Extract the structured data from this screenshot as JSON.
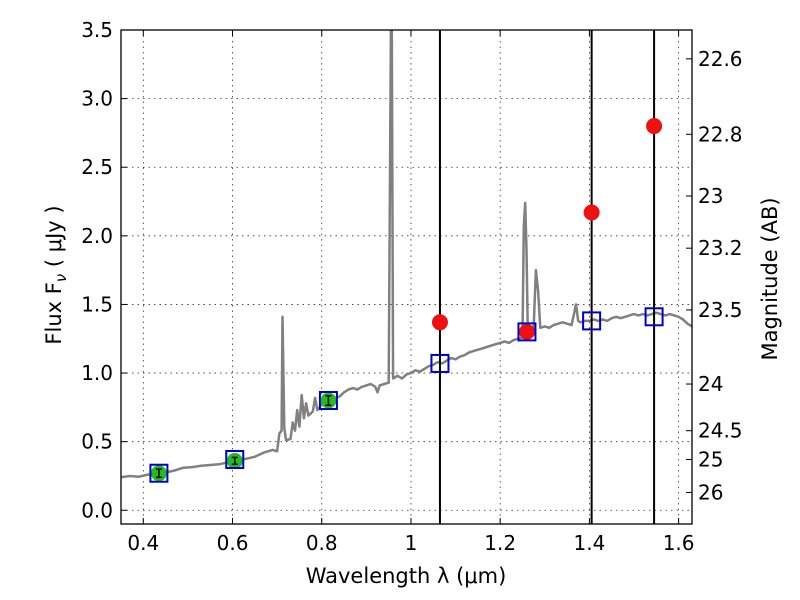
{
  "chart_data": {
    "type": "scatter",
    "xlabel": "Wavelength  λ (μm)",
    "ylabel": "Flux  F",
    "ylabel_sub": "ν",
    "ylabel_units": "  ( μJy )",
    "y2label": "Magnitude (AB)",
    "xlim": [
      0.35,
      1.63
    ],
    "ylim": [
      -0.1,
      3.5
    ],
    "grid": true,
    "x_ticks": [
      {
        "value": 0.4,
        "label": "0.4"
      },
      {
        "value": 0.6,
        "label": "0.6"
      },
      {
        "value": 0.8,
        "label": "0.8"
      },
      {
        "value": 1.0,
        "label": "1"
      },
      {
        "value": 1.2,
        "label": "1.2"
      },
      {
        "value": 1.4,
        "label": "1.4"
      },
      {
        "value": 1.6,
        "label": "1.6"
      }
    ],
    "y_ticks": [
      {
        "value": 0.0,
        "label": "0.0"
      },
      {
        "value": 0.5,
        "label": "0.5"
      },
      {
        "value": 1.0,
        "label": "1.0"
      },
      {
        "value": 1.5,
        "label": "1.5"
      },
      {
        "value": 2.0,
        "label": "2.0"
      },
      {
        "value": 2.5,
        "label": "2.5"
      },
      {
        "value": 3.0,
        "label": "3.0"
      },
      {
        "value": 3.5,
        "label": "3.5"
      }
    ],
    "y2_ticks": [
      {
        "flux": 3.29,
        "label": "22.6"
      },
      {
        "flux": 2.74,
        "label": "22.8"
      },
      {
        "flux": 2.29,
        "label": "23"
      },
      {
        "flux": 1.91,
        "label": "23.2"
      },
      {
        "flux": 1.46,
        "label": "23.5"
      },
      {
        "flux": 0.92,
        "label": "24"
      },
      {
        "flux": 0.58,
        "label": "24.5"
      },
      {
        "flux": 0.37,
        "label": "25"
      },
      {
        "flux": 0.13,
        "label": "26"
      }
    ],
    "vertical_lines": [
      1.065,
      1.405,
      1.545
    ],
    "series": [
      {
        "role": "model spectrum",
        "marker": "line",
        "color": "#808080",
        "points": [
          [
            0.35,
            0.24
          ],
          [
            0.37,
            0.25
          ],
          [
            0.39,
            0.245
          ],
          [
            0.41,
            0.26
          ],
          [
            0.43,
            0.265
          ],
          [
            0.45,
            0.275
          ],
          [
            0.47,
            0.29
          ],
          [
            0.49,
            0.31
          ],
          [
            0.51,
            0.315
          ],
          [
            0.53,
            0.325
          ],
          [
            0.55,
            0.33
          ],
          [
            0.57,
            0.335
          ],
          [
            0.59,
            0.35
          ],
          [
            0.61,
            0.365
          ],
          [
            0.63,
            0.375
          ],
          [
            0.65,
            0.39
          ],
          [
            0.67,
            0.42
          ],
          [
            0.69,
            0.44
          ],
          [
            0.7,
            0.43
          ],
          [
            0.705,
            0.56
          ],
          [
            0.71,
            0.58
          ],
          [
            0.712,
            1.41
          ],
          [
            0.716,
            0.6
          ],
          [
            0.72,
            0.51
          ],
          [
            0.73,
            0.52
          ],
          [
            0.735,
            0.64
          ],
          [
            0.74,
            0.58
          ],
          [
            0.745,
            0.73
          ],
          [
            0.75,
            0.61
          ],
          [
            0.755,
            0.84
          ],
          [
            0.76,
            0.67
          ],
          [
            0.765,
            0.78
          ],
          [
            0.77,
            0.69
          ],
          [
            0.78,
            0.72
          ],
          [
            0.785,
            0.82
          ],
          [
            0.79,
            0.73
          ],
          [
            0.8,
            0.77
          ],
          [
            0.81,
            0.79
          ],
          [
            0.82,
            0.8
          ],
          [
            0.83,
            0.82
          ],
          [
            0.84,
            0.83
          ],
          [
            0.85,
            0.86
          ],
          [
            0.86,
            0.88
          ],
          [
            0.87,
            0.89
          ],
          [
            0.88,
            0.88
          ],
          [
            0.89,
            0.9
          ],
          [
            0.9,
            0.91
          ],
          [
            0.91,
            0.92
          ],
          [
            0.92,
            0.9
          ],
          [
            0.925,
            0.86
          ],
          [
            0.93,
            0.91
          ],
          [
            0.94,
            0.92
          ],
          [
            0.95,
            0.93
          ],
          [
            0.955,
            3.5
          ],
          [
            0.957,
            3.5
          ],
          [
            0.96,
            0.96
          ],
          [
            0.97,
            0.98
          ],
          [
            0.98,
            0.96
          ],
          [
            0.99,
            0.99
          ],
          [
            1.0,
            1.0
          ],
          [
            1.01,
            1.02
          ],
          [
            1.02,
            1.01
          ],
          [
            1.03,
            1.03
          ],
          [
            1.04,
            1.05
          ],
          [
            1.05,
            1.06
          ],
          [
            1.06,
            1.08
          ],
          [
            1.07,
            1.07
          ],
          [
            1.08,
            1.09
          ],
          [
            1.09,
            1.11
          ],
          [
            1.1,
            1.1
          ],
          [
            1.11,
            1.12
          ],
          [
            1.12,
            1.13
          ],
          [
            1.13,
            1.15
          ],
          [
            1.14,
            1.16
          ],
          [
            1.15,
            1.17
          ],
          [
            1.16,
            1.18
          ],
          [
            1.17,
            1.19
          ],
          [
            1.18,
            1.2
          ],
          [
            1.19,
            1.21
          ],
          [
            1.2,
            1.22
          ],
          [
            1.21,
            1.23
          ],
          [
            1.22,
            1.22
          ],
          [
            1.23,
            1.24
          ],
          [
            1.24,
            1.25
          ],
          [
            1.25,
            1.26
          ],
          [
            1.253,
            2.07
          ],
          [
            1.256,
            2.24
          ],
          [
            1.259,
            1.9
          ],
          [
            1.262,
            1.3
          ],
          [
            1.27,
            1.28
          ],
          [
            1.275,
            1.32
          ],
          [
            1.28,
            1.75
          ],
          [
            1.285,
            1.6
          ],
          [
            1.29,
            1.33
          ],
          [
            1.3,
            1.34
          ],
          [
            1.31,
            1.33
          ],
          [
            1.32,
            1.35
          ],
          [
            1.33,
            1.36
          ],
          [
            1.34,
            1.37
          ],
          [
            1.35,
            1.36
          ],
          [
            1.36,
            1.35
          ],
          [
            1.37,
            1.5
          ],
          [
            1.375,
            1.38
          ],
          [
            1.38,
            1.37
          ],
          [
            1.39,
            1.38
          ],
          [
            1.4,
            1.38
          ],
          [
            1.41,
            1.39
          ],
          [
            1.42,
            1.38
          ],
          [
            1.43,
            1.39
          ],
          [
            1.44,
            1.38
          ],
          [
            1.45,
            1.4
          ],
          [
            1.46,
            1.41
          ],
          [
            1.47,
            1.4
          ],
          [
            1.48,
            1.41
          ],
          [
            1.49,
            1.42
          ],
          [
            1.5,
            1.43
          ],
          [
            1.51,
            1.42
          ],
          [
            1.52,
            1.43
          ],
          [
            1.53,
            1.42
          ],
          [
            1.54,
            1.43
          ],
          [
            1.55,
            1.44
          ],
          [
            1.56,
            1.43
          ],
          [
            1.57,
            1.42
          ],
          [
            1.58,
            1.43
          ],
          [
            1.59,
            1.42
          ],
          [
            1.6,
            1.41
          ],
          [
            1.61,
            1.39
          ],
          [
            1.62,
            1.36
          ],
          [
            1.63,
            1.34
          ]
        ]
      },
      {
        "role": "model photometry",
        "marker": "open-square",
        "color": "#0000cc",
        "points": [
          [
            0.435,
            0.27
          ],
          [
            0.605,
            0.37
          ],
          [
            0.815,
            0.8
          ],
          [
            1.065,
            1.07
          ],
          [
            1.26,
            1.3
          ],
          [
            1.405,
            1.38
          ],
          [
            1.545,
            1.41
          ]
        ]
      },
      {
        "role": "observed flux (detections)",
        "marker": "circle",
        "color": "#22bb22",
        "points": [
          [
            0.435,
            0.27
          ],
          [
            0.605,
            0.36
          ],
          [
            0.815,
            0.8
          ]
        ],
        "errors": [
          0.03,
          0.025,
          0.035
        ]
      },
      {
        "role": "upper limits",
        "marker": "circle",
        "color": "#ee1111",
        "points": [
          [
            1.065,
            1.37
          ],
          [
            1.26,
            1.3
          ],
          [
            1.405,
            2.17
          ],
          [
            1.545,
            2.8
          ]
        ]
      }
    ]
  }
}
